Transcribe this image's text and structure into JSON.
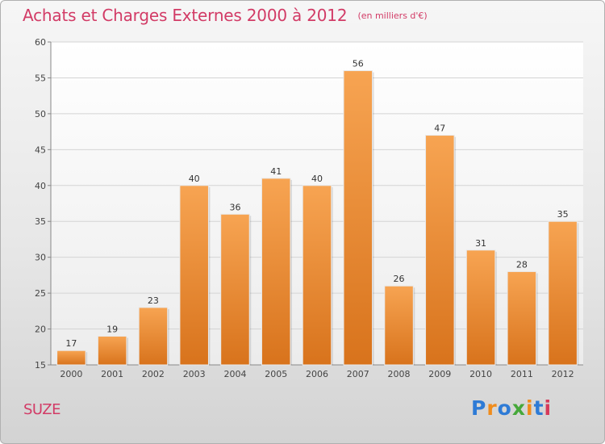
{
  "chart_data": {
    "type": "bar",
    "title": "Achats et Charges Externes 2000 à 2012",
    "subtitle": "(en milliers d'€)",
    "categories": [
      "2000",
      "2001",
      "2002",
      "2003",
      "2004",
      "2005",
      "2006",
      "2007",
      "2008",
      "2009",
      "2010",
      "2011",
      "2012"
    ],
    "values": [
      17,
      19,
      23,
      40,
      36,
      41,
      40,
      56,
      26,
      47,
      31,
      28,
      35
    ],
    "ylim": [
      15,
      60
    ],
    "yticks": [
      15,
      20,
      25,
      30,
      35,
      40,
      45,
      50,
      55,
      60
    ],
    "grid": true,
    "bar_color": "#f0963c",
    "xlabel": "",
    "ylabel": ""
  },
  "place": "SUZE",
  "logo": {
    "text": "Proxiti",
    "colors": [
      "#2e7bd6",
      "#f08c1c",
      "#2e7bd6",
      "#46a83a",
      "#f08c1c",
      "#2e7bd6",
      "#d63a5a"
    ]
  }
}
